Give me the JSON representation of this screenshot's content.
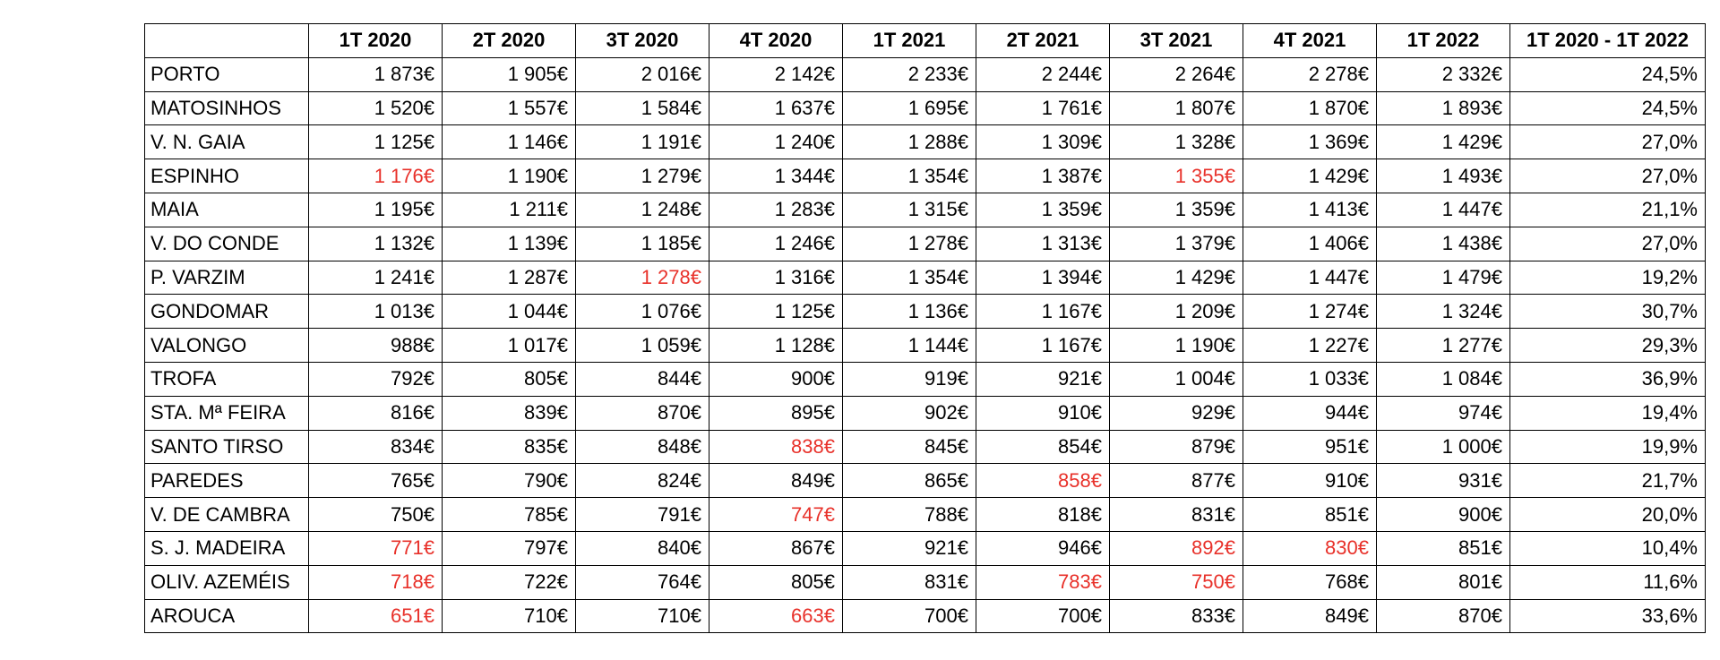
{
  "table": {
    "columns": [
      "",
      "1T 2020",
      "2T 2020",
      "3T 2020",
      "4T 2020",
      "1T 2021",
      "2T 2021",
      "3T 2021",
      "4T 2021",
      "1T 2022",
      "1T 2020 - 1T 2022"
    ],
    "negative_color": "#e8312a",
    "rows": [
      {
        "name": "PORTO",
        "values": [
          "1 873€",
          "1 905€",
          "2 016€",
          "2 142€",
          "2 233€",
          "2 244€",
          "2 264€",
          "2 278€",
          "2 332€"
        ],
        "change": "24,5%",
        "negative": []
      },
      {
        "name": "MATOSINHOS",
        "values": [
          "1 520€",
          "1 557€",
          "1 584€",
          "1 637€",
          "1 695€",
          "1 761€",
          "1 807€",
          "1 870€",
          "1 893€"
        ],
        "change": "24,5%",
        "negative": []
      },
      {
        "name": "V. N. GAIA",
        "values": [
          "1 125€",
          "1 146€",
          "1 191€",
          "1 240€",
          "1 288€",
          "1 309€",
          "1 328€",
          "1 369€",
          "1 429€"
        ],
        "change": "27,0%",
        "negative": []
      },
      {
        "name": "ESPINHO",
        "values": [
          "1 176€",
          "1 190€",
          "1 279€",
          "1 344€",
          "1 354€",
          "1 387€",
          "1 355€",
          "1 429€",
          "1 493€"
        ],
        "change": "27,0%",
        "negative": [
          0,
          6
        ]
      },
      {
        "name": "MAIA",
        "values": [
          "1 195€",
          "1 211€",
          "1 248€",
          "1 283€",
          "1 315€",
          "1 359€",
          "1 359€",
          "1 413€",
          "1 447€"
        ],
        "change": "21,1%",
        "negative": []
      },
      {
        "name": "V. DO CONDE",
        "values": [
          "1 132€",
          "1 139€",
          "1 185€",
          "1 246€",
          "1 278€",
          "1 313€",
          "1 379€",
          "1 406€",
          "1 438€"
        ],
        "change": "27,0%",
        "negative": []
      },
      {
        "name": "P. VARZIM",
        "values": [
          "1 241€",
          "1 287€",
          "1 278€",
          "1 316€",
          "1 354€",
          "1 394€",
          "1 429€",
          "1 447€",
          "1 479€"
        ],
        "change": "19,2%",
        "negative": [
          2
        ]
      },
      {
        "name": "GONDOMAR",
        "values": [
          "1 013€",
          "1 044€",
          "1 076€",
          "1 125€",
          "1 136€",
          "1 167€",
          "1 209€",
          "1 274€",
          "1 324€"
        ],
        "change": "30,7%",
        "negative": []
      },
      {
        "name": "VALONGO",
        "values": [
          "988€",
          "1 017€",
          "1 059€",
          "1 128€",
          "1 144€",
          "1 167€",
          "1 190€",
          "1 227€",
          "1 277€"
        ],
        "change": "29,3%",
        "negative": []
      },
      {
        "name": "TROFA",
        "values": [
          "792€",
          "805€",
          "844€",
          "900€",
          "919€",
          "921€",
          "1 004€",
          "1 033€",
          "1 084€"
        ],
        "change": "36,9%",
        "negative": []
      },
      {
        "name": "STA. Mª FEIRA",
        "values": [
          "816€",
          "839€",
          "870€",
          "895€",
          "902€",
          "910€",
          "929€",
          "944€",
          "974€"
        ],
        "change": "19,4%",
        "negative": []
      },
      {
        "name": "SANTO TIRSO",
        "values": [
          "834€",
          "835€",
          "848€",
          "838€",
          "845€",
          "854€",
          "879€",
          "951€",
          "1 000€"
        ],
        "change": "19,9%",
        "negative": [
          3
        ]
      },
      {
        "name": "PAREDES",
        "values": [
          "765€",
          "790€",
          "824€",
          "849€",
          "865€",
          "858€",
          "877€",
          "910€",
          "931€"
        ],
        "change": "21,7%",
        "negative": [
          5
        ]
      },
      {
        "name": "V. DE CAMBRA",
        "values": [
          "750€",
          "785€",
          "791€",
          "747€",
          "788€",
          "818€",
          "831€",
          "851€",
          "900€"
        ],
        "change": "20,0%",
        "negative": [
          3
        ]
      },
      {
        "name": "S. J. MADEIRA",
        "values": [
          "771€",
          "797€",
          "840€",
          "867€",
          "921€",
          "946€",
          "892€",
          "830€",
          "851€"
        ],
        "change": "10,4%",
        "negative": [
          0,
          6,
          7
        ]
      },
      {
        "name": "OLIV. AZEMÉIS",
        "values": [
          "718€",
          "722€",
          "764€",
          "805€",
          "831€",
          "783€",
          "750€",
          "768€",
          "801€"
        ],
        "change": "11,6%",
        "negative": [
          0,
          5,
          6
        ]
      },
      {
        "name": "AROUCA",
        "values": [
          "651€",
          "710€",
          "710€",
          "663€",
          "700€",
          "700€",
          "833€",
          "849€",
          "870€"
        ],
        "change": "33,6%",
        "negative": [
          0,
          3
        ]
      }
    ]
  }
}
